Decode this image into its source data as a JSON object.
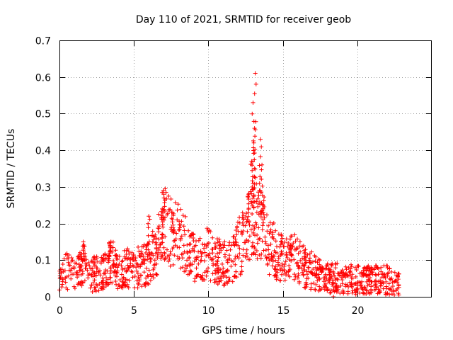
{
  "chart_data": {
    "type": "scatter",
    "title": "Day 110 of 2021, SRMTID for receiver geob",
    "xlabel": "GPS time / hours",
    "ylabel": "SRMTID / TECUs",
    "xlim": [
      0,
      25
    ],
    "ylim": [
      0,
      0.7
    ],
    "xticks": [
      0,
      5,
      10,
      15,
      20
    ],
    "yticks": [
      0,
      0.1,
      0.2,
      0.3,
      0.4,
      0.5,
      0.6,
      0.7
    ],
    "xtick_labels": [
      "0",
      "5",
      "10",
      "15",
      "20"
    ],
    "ytick_labels": [
      "0",
      "0.1",
      "0.2",
      "0.3",
      "0.4",
      "0.5",
      "0.6",
      "0.7"
    ],
    "grid": true,
    "marker": "+",
    "color": "#ff0000",
    "series": [
      {
        "name": "SRMTID",
        "profile_points": [
          {
            "x": 0.0,
            "y": 0.05
          },
          {
            "x": 0.5,
            "y": 0.07
          },
          {
            "x": 1.0,
            "y": 0.055
          },
          {
            "x": 1.6,
            "y": 0.09
          },
          {
            "x": 2.0,
            "y": 0.06
          },
          {
            "x": 3.0,
            "y": 0.065
          },
          {
            "x": 3.4,
            "y": 0.1
          },
          {
            "x": 4.0,
            "y": 0.07
          },
          {
            "x": 4.5,
            "y": 0.08
          },
          {
            "x": 5.0,
            "y": 0.075
          },
          {
            "x": 5.8,
            "y": 0.09
          },
          {
            "x": 6.5,
            "y": 0.12
          },
          {
            "x": 7.0,
            "y": 0.2
          },
          {
            "x": 7.5,
            "y": 0.17
          },
          {
            "x": 8.0,
            "y": 0.16
          },
          {
            "x": 8.5,
            "y": 0.14
          },
          {
            "x": 9.0,
            "y": 0.11
          },
          {
            "x": 9.5,
            "y": 0.1
          },
          {
            "x": 10.0,
            "y": 0.12
          },
          {
            "x": 10.5,
            "y": 0.1
          },
          {
            "x": 11.0,
            "y": 0.09
          },
          {
            "x": 11.5,
            "y": 0.1
          },
          {
            "x": 12.0,
            "y": 0.14
          },
          {
            "x": 12.5,
            "y": 0.16
          },
          {
            "x": 13.0,
            "y": 0.22
          },
          {
            "x": 13.6,
            "y": 0.2
          },
          {
            "x": 14.0,
            "y": 0.15
          },
          {
            "x": 14.5,
            "y": 0.12
          },
          {
            "x": 15.0,
            "y": 0.1
          },
          {
            "x": 15.5,
            "y": 0.11
          },
          {
            "x": 16.0,
            "y": 0.1
          },
          {
            "x": 16.5,
            "y": 0.08
          },
          {
            "x": 17.0,
            "y": 0.07
          },
          {
            "x": 17.5,
            "y": 0.055
          },
          {
            "x": 18.0,
            "y": 0.05
          },
          {
            "x": 19.0,
            "y": 0.05
          },
          {
            "x": 20.0,
            "y": 0.045
          },
          {
            "x": 21.0,
            "y": 0.045
          },
          {
            "x": 22.0,
            "y": 0.045
          },
          {
            "x": 22.8,
            "y": 0.03
          }
        ],
        "peaks": [
          {
            "x": 13.15,
            "y": 0.61
          },
          {
            "x": 13.0,
            "y": 0.53
          },
          {
            "x": 13.1,
            "y": 0.46
          },
          {
            "x": 13.5,
            "y": 0.43
          },
          {
            "x": 13.05,
            "y": 0.42
          },
          {
            "x": 13.6,
            "y": 0.36
          },
          {
            "x": 12.9,
            "y": 0.37
          },
          {
            "x": 7.0,
            "y": 0.28
          },
          {
            "x": 6.9,
            "y": 0.24
          },
          {
            "x": 7.6,
            "y": 0.23
          },
          {
            "x": 12.7,
            "y": 0.28
          },
          {
            "x": 13.7,
            "y": 0.25
          },
          {
            "x": 6.0,
            "y": 0.22
          },
          {
            "x": 1.6,
            "y": 0.15
          },
          {
            "x": 3.4,
            "y": 0.14
          },
          {
            "x": 15.5,
            "y": 0.14
          },
          {
            "x": 16.5,
            "y": 0.12
          }
        ]
      }
    ]
  }
}
